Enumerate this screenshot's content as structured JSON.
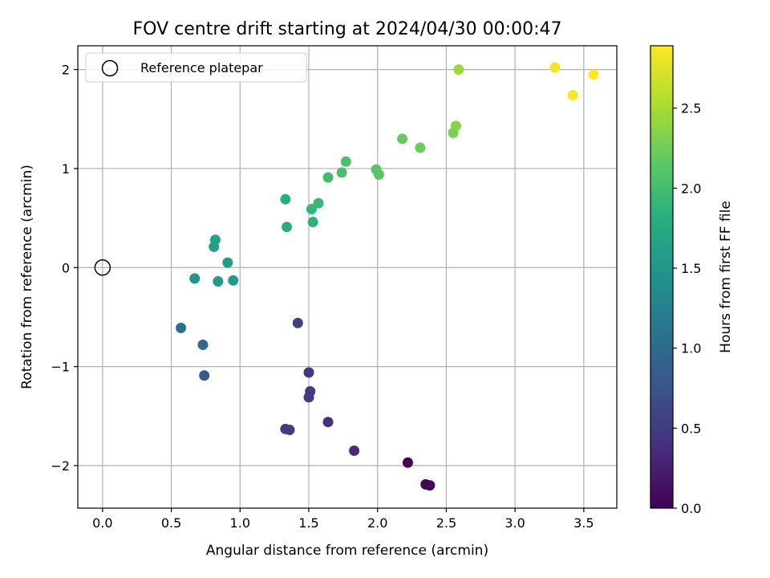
{
  "chart_data": {
    "type": "scatter",
    "title": "FOV centre drift starting at 2024/04/30 00:00:47",
    "xlabel": "Angular distance from reference (arcmin)",
    "ylabel": "Rotation from reference (arcmin)",
    "colorbar_label": "Hours from first FF file",
    "xlim": [
      -0.18,
      3.74
    ],
    "ylim": [
      -2.43,
      2.24
    ],
    "clim": [
      0.0,
      2.89
    ],
    "grid": true,
    "legend": {
      "label": "Reference platepar",
      "position": "top-left"
    },
    "x_ticks": [
      0.0,
      0.5,
      1.0,
      1.5,
      2.0,
      2.5,
      3.0,
      3.5
    ],
    "x_tick_labels": [
      "0.0",
      "0.5",
      "1.0",
      "1.5",
      "2.0",
      "2.5",
      "3.0",
      "3.5"
    ],
    "y_ticks": [
      -2,
      -1,
      0,
      1,
      2
    ],
    "y_tick_labels": [
      "−2",
      "−1",
      "0",
      "1",
      "2"
    ],
    "colorbar_ticks": [
      0.0,
      0.5,
      1.0,
      1.5,
      2.0,
      2.5
    ],
    "colorbar_tick_labels": [
      "0.0",
      "0.5",
      "1.0",
      "1.5",
      "2.0",
      "2.5"
    ],
    "reference_point": {
      "x": 0.0,
      "y": 0.0
    },
    "points": [
      {
        "x": 2.22,
        "y": -1.97,
        "c": 0.0
      },
      {
        "x": 2.35,
        "y": -2.19,
        "c": 0.03
      },
      {
        "x": 2.38,
        "y": -2.2,
        "c": 0.06
      },
      {
        "x": 1.83,
        "y": -1.85,
        "c": 0.35
      },
      {
        "x": 1.64,
        "y": -1.56,
        "c": 0.4
      },
      {
        "x": 1.5,
        "y": -1.06,
        "c": 0.45
      },
      {
        "x": 1.51,
        "y": -1.25,
        "c": 0.48
      },
      {
        "x": 1.5,
        "y": -1.31,
        "c": 0.5
      },
      {
        "x": 1.33,
        "y": -1.63,
        "c": 0.52
      },
      {
        "x": 1.36,
        "y": -1.64,
        "c": 0.54
      },
      {
        "x": 1.42,
        "y": -0.56,
        "c": 0.56
      },
      {
        "x": 0.74,
        "y": -1.09,
        "c": 0.8
      },
      {
        "x": 0.73,
        "y": -0.78,
        "c": 0.95
      },
      {
        "x": 0.57,
        "y": -0.61,
        "c": 1.08
      },
      {
        "x": 0.67,
        "y": -0.11,
        "c": 1.5
      },
      {
        "x": 0.84,
        "y": -0.14,
        "c": 1.55
      },
      {
        "x": 0.95,
        "y": -0.13,
        "c": 1.58
      },
      {
        "x": 0.91,
        "y": 0.05,
        "c": 1.6
      },
      {
        "x": 0.81,
        "y": 0.21,
        "c": 1.62
      },
      {
        "x": 0.82,
        "y": 0.28,
        "c": 1.65
      },
      {
        "x": 1.34,
        "y": 0.41,
        "c": 1.8
      },
      {
        "x": 1.33,
        "y": 0.69,
        "c": 1.82
      },
      {
        "x": 1.53,
        "y": 0.46,
        "c": 1.85
      },
      {
        "x": 1.52,
        "y": 0.59,
        "c": 1.88
      },
      {
        "x": 1.57,
        "y": 0.65,
        "c": 1.92
      },
      {
        "x": 1.64,
        "y": 0.91,
        "c": 1.98
      },
      {
        "x": 1.74,
        "y": 0.96,
        "c": 2.02
      },
      {
        "x": 1.77,
        "y": 1.07,
        "c": 2.05
      },
      {
        "x": 1.99,
        "y": 0.99,
        "c": 2.1
      },
      {
        "x": 2.01,
        "y": 0.94,
        "c": 2.12
      },
      {
        "x": 2.18,
        "y": 1.3,
        "c": 2.2
      },
      {
        "x": 2.31,
        "y": 1.21,
        "c": 2.22
      },
      {
        "x": 2.55,
        "y": 1.36,
        "c": 2.3
      },
      {
        "x": 2.57,
        "y": 1.43,
        "c": 2.35
      },
      {
        "x": 2.59,
        "y": 2.0,
        "c": 2.45
      },
      {
        "x": 3.29,
        "y": 2.02,
        "c": 2.85
      },
      {
        "x": 3.42,
        "y": 1.74,
        "c": 2.87
      },
      {
        "x": 3.57,
        "y": 1.95,
        "c": 2.89
      }
    ]
  }
}
